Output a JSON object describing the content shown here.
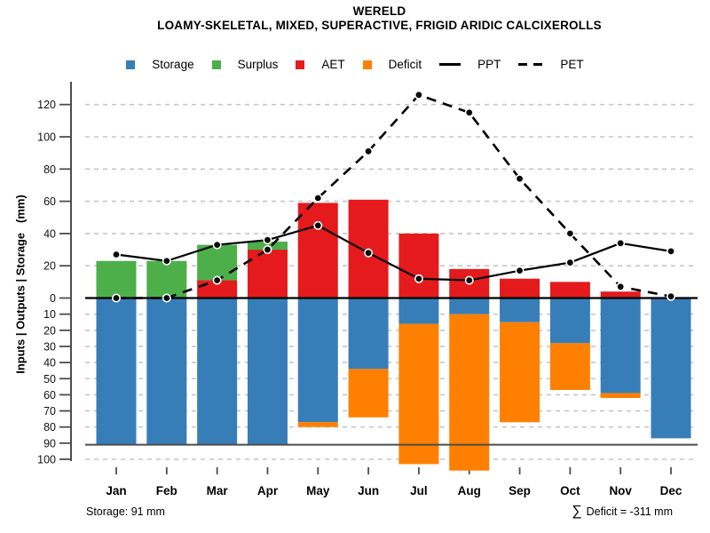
{
  "title": "WERELD",
  "subtitle": "LOAMY-SKELETAL, MIXED, SUPERACTIVE, FRIGID ARIDIC CALCIXEROLLS",
  "y_axis_label": "Inputs | Outputs | Storage   (mm)",
  "legend": {
    "items": [
      {
        "label": "Storage",
        "swatch": "square",
        "color": "#377EB8"
      },
      {
        "label": "Surplus",
        "swatch": "square",
        "color": "#4DAF4A"
      },
      {
        "label": "AET",
        "swatch": "square",
        "color": "#E41A1C"
      },
      {
        "label": "Deficit",
        "swatch": "square",
        "color": "#FF7F00"
      },
      {
        "label": "PPT",
        "swatch": "line-solid",
        "color": "#000000"
      },
      {
        "label": "PET",
        "swatch": "line-dashed",
        "color": "#000000"
      }
    ]
  },
  "footer": {
    "storage": "Storage: 91 mm",
    "sigma": "∑",
    "deficit": "Deficit = -311 mm"
  },
  "colors": {
    "storage": "#377EB8",
    "surplus": "#4DAF4A",
    "aet": "#E41A1C",
    "deficit": "#FF7F00",
    "line": "#000000",
    "grid": "#C6C6C6",
    "axis": "#4D4D4D",
    "zero_line": "#000000",
    "capacity_line": "#4D4D4D"
  },
  "chart_data": {
    "type": "bar",
    "subtype": "mirrored water-balance: stacked bars above zero (AET+Surplus), stacked bars below zero (Storage+Deficit), overlaid PPT/PET lines",
    "months": [
      "Jan",
      "Feb",
      "Mar",
      "Apr",
      "May",
      "Jun",
      "Jul",
      "Aug",
      "Sep",
      "Oct",
      "Nov",
      "Dec"
    ],
    "series": [
      {
        "name": "Storage",
        "type": "bar",
        "side": "below-zero",
        "values": [
          91,
          91,
          91,
          91,
          77,
          44,
          16,
          10,
          15,
          28,
          59,
          87
        ]
      },
      {
        "name": "Deficit",
        "type": "bar",
        "side": "below-zero-stacked-on-storage",
        "values": [
          0,
          0,
          0,
          0,
          3,
          30,
          87,
          97,
          62,
          29,
          3,
          0
        ]
      },
      {
        "name": "AET",
        "type": "bar",
        "side": "above-zero",
        "values": [
          0,
          0,
          11,
          30,
          59,
          61,
          40,
          18,
          12,
          10,
          4,
          0
        ]
      },
      {
        "name": "Surplus",
        "type": "bar",
        "side": "above-zero-stacked-on-aet",
        "values": [
          23,
          23,
          22,
          5,
          0,
          0,
          0,
          0,
          0,
          0,
          0,
          0
        ]
      },
      {
        "name": "PPT",
        "type": "line",
        "style": "solid",
        "values": [
          27,
          23,
          33,
          36,
          45,
          28,
          12,
          11,
          17,
          22,
          34,
          29
        ]
      },
      {
        "name": "PET",
        "type": "line",
        "style": "dashed",
        "values": [
          0,
          0,
          11,
          30,
          62,
          91,
          126,
          115,
          74,
          40,
          7,
          1
        ]
      }
    ],
    "ylabel": "Inputs | Outputs | Storage   (mm)",
    "y_axis": {
      "upper_ticks": [
        0,
        20,
        40,
        60,
        80,
        100,
        120
      ],
      "lower_ticks": [
        10,
        20,
        30,
        40,
        50,
        60,
        70,
        80,
        90,
        100
      ],
      "upper_range_mm": [
        0,
        130
      ],
      "lower_range_mm_inverted": [
        0,
        108
      ],
      "unit": "mm"
    },
    "grid": "dashed horizontal",
    "legend_position": "top-center",
    "storage_capacity_mm": 91,
    "sum_deficit_mm": -311
  }
}
